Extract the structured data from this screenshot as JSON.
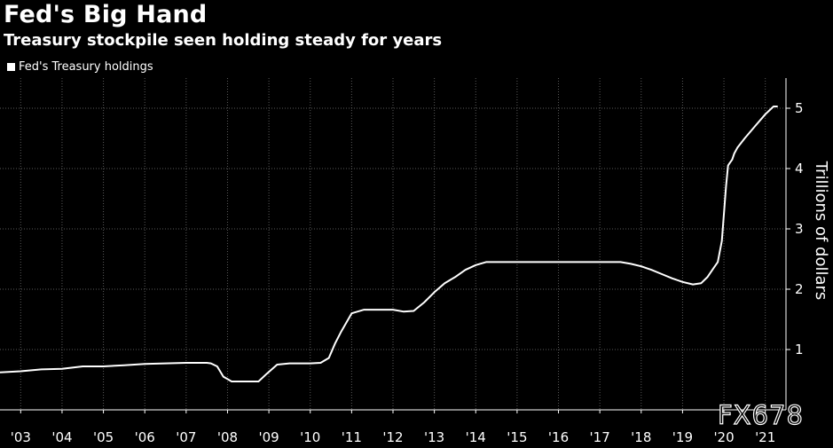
{
  "header": {
    "title": "Fed's Big Hand",
    "subtitle": "Treasury stockpile seen holding steady for years"
  },
  "watermark": "FX678",
  "colors": {
    "background": "#000000",
    "line": "#ffffff",
    "grid": "#5a5a5a"
  },
  "chart_data": {
    "type": "line",
    "title": "Fed's Big Hand",
    "subtitle": "Treasury stockpile seen holding steady for years",
    "xlabel": "",
    "ylabel": "Trillions of dollars",
    "xlim": [
      2002.5,
      2021.5
    ],
    "ylim": [
      0,
      5.5
    ],
    "grid": true,
    "legend_placement": "top-left",
    "x_ticks": [
      2003,
      2004,
      2005,
      2006,
      2007,
      2008,
      2009,
      2010,
      2011,
      2012,
      2013,
      2014,
      2015,
      2016,
      2017,
      2018,
      2019,
      2020,
      2021
    ],
    "x_tick_labels": [
      "'03",
      "'04",
      "'05",
      "'06",
      "'07",
      "'08",
      "'09",
      "'10",
      "'11",
      "'12",
      "'13",
      "'14",
      "'15",
      "'16",
      "'17",
      "'18",
      "'19",
      "'20",
      "'21"
    ],
    "y_ticks": [
      1,
      2,
      3,
      4,
      5
    ],
    "y_tick_labels": [
      "1",
      "2",
      "3",
      "4",
      "5"
    ],
    "series": [
      {
        "name": "Fed's Treasury holdings",
        "x": [
          2002.5,
          2003.0,
          2003.5,
          2004.0,
          2004.5,
          2005.0,
          2005.5,
          2006.0,
          2006.5,
          2007.0,
          2007.5,
          2007.6,
          2007.75,
          2007.9,
          2008.1,
          2008.5,
          2008.75,
          2008.95,
          2009.2,
          2009.5,
          2009.7,
          2010.0,
          2010.25,
          2010.45,
          2010.6,
          2010.75,
          2011.0,
          2011.3,
          2011.5,
          2011.75,
          2012.0,
          2012.25,
          2012.5,
          2012.75,
          2013.0,
          2013.25,
          2013.5,
          2013.75,
          2014.0,
          2014.25,
          2014.5,
          2014.75,
          2015.0,
          2015.5,
          2016.0,
          2016.5,
          2017.0,
          2017.5,
          2017.75,
          2018.0,
          2018.25,
          2018.5,
          2018.75,
          2019.0,
          2019.25,
          2019.45,
          2019.6,
          2019.75,
          2019.85,
          2019.95,
          2020.05,
          2020.1,
          2020.15,
          2020.2,
          2020.25,
          2020.33,
          2020.5,
          2020.75,
          2021.0,
          2021.2,
          2021.3
        ],
        "values": [
          0.62,
          0.64,
          0.67,
          0.68,
          0.72,
          0.72,
          0.74,
          0.76,
          0.77,
          0.78,
          0.78,
          0.77,
          0.72,
          0.55,
          0.47,
          0.47,
          0.47,
          0.6,
          0.75,
          0.77,
          0.77,
          0.77,
          0.78,
          0.86,
          1.1,
          1.3,
          1.6,
          1.66,
          1.66,
          1.66,
          1.66,
          1.63,
          1.64,
          1.78,
          1.95,
          2.1,
          2.2,
          2.32,
          2.4,
          2.45,
          2.45,
          2.45,
          2.45,
          2.45,
          2.45,
          2.45,
          2.45,
          2.45,
          2.42,
          2.38,
          2.32,
          2.25,
          2.18,
          2.12,
          2.08,
          2.1,
          2.2,
          2.35,
          2.45,
          2.8,
          3.7,
          4.05,
          4.1,
          4.15,
          4.25,
          4.35,
          4.5,
          4.7,
          4.9,
          5.03,
          5.03
        ]
      }
    ]
  }
}
